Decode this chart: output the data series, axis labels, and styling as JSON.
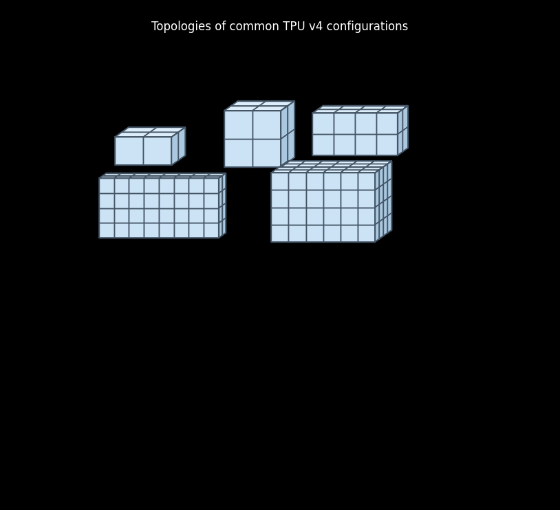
{
  "background_color": "#000000",
  "face_front_color": "#cce3f5",
  "face_top_color": "#ddeefa",
  "face_side_color": "#aac8df",
  "edge_color": "#445566",
  "edge_width": 1.0,
  "title": "Topologies of common TPU v4 configurations",
  "title_color": "#ffffff",
  "title_fontsize": 12,
  "configs": [
    {
      "nx": 2,
      "ny": 2,
      "nz": 1,
      "ox": 0.062,
      "oy": 0.735,
      "cw": 0.072,
      "ch": 0.072,
      "cd": 0.025
    },
    {
      "nx": 2,
      "ny": 2,
      "nz": 2,
      "ox": 0.34,
      "oy": 0.73,
      "cw": 0.072,
      "ch": 0.072,
      "cd": 0.025
    },
    {
      "nx": 4,
      "ny": 2,
      "nz": 2,
      "ox": 0.565,
      "oy": 0.76,
      "cw": 0.054,
      "ch": 0.054,
      "cd": 0.019
    },
    {
      "nx": 8,
      "ny": 2,
      "nz": 4,
      "ox": 0.022,
      "oy": 0.55,
      "cw": 0.038,
      "ch": 0.038,
      "cd": 0.013
    },
    {
      "nx": 6,
      "ny": 4,
      "nz": 4,
      "ox": 0.46,
      "oy": 0.54,
      "cw": 0.044,
      "ch": 0.044,
      "cd": 0.015
    }
  ]
}
